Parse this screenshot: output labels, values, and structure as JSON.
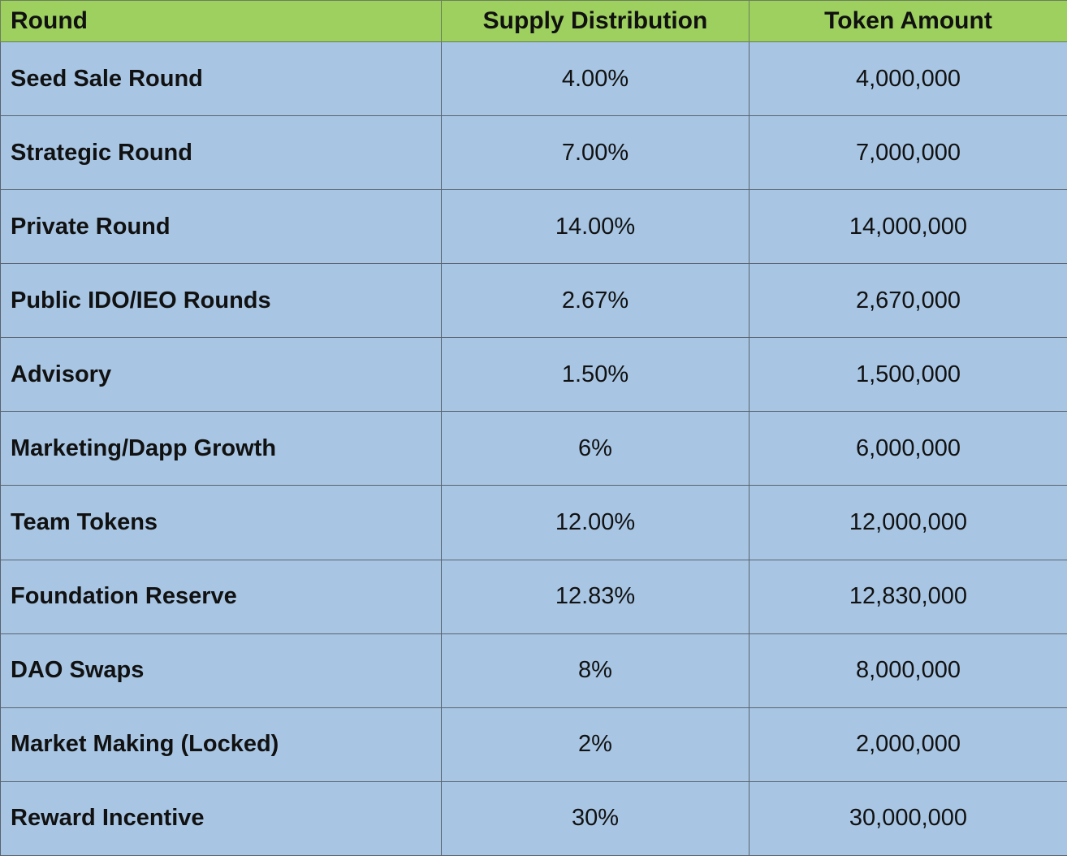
{
  "table": {
    "header": [
      "Round",
      "Supply Distribution",
      "Token Amount"
    ],
    "rows": [
      [
        "Seed Sale Round",
        "4.00%",
        "4,000,000"
      ],
      [
        "Strategic Round",
        "7.00%",
        "7,000,000"
      ],
      [
        "Private Round",
        "14.00%",
        "14,000,000"
      ],
      [
        "Public IDO/IEO Rounds",
        "2.67%",
        "2,670,000"
      ],
      [
        "Advisory",
        "1.50%",
        "1,500,000"
      ],
      [
        "Marketing/Dapp Growth",
        "6%",
        "6,000,000"
      ],
      [
        "Team Tokens",
        "12.00%",
        "12,000,000"
      ],
      [
        "Foundation Reserve",
        "12.83%",
        "12,830,000"
      ],
      [
        "DAO Swaps",
        "8%",
        "8,000,000"
      ],
      [
        "Market Making (Locked)",
        "2%",
        "2,000,000"
      ],
      [
        "Reward Incentive",
        "30%",
        "30,000,000"
      ]
    ]
  }
}
